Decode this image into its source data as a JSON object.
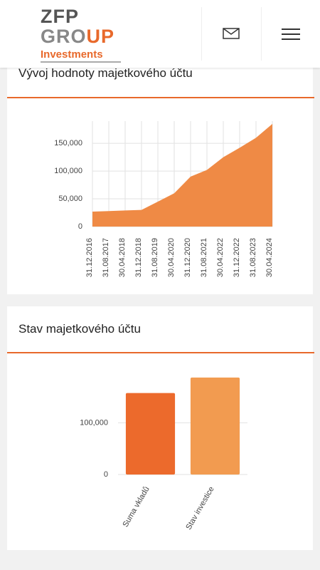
{
  "header": {
    "logo": {
      "line1": "ZFP",
      "line2a": "GRO",
      "line2b": "UP",
      "tagline": "Investments"
    }
  },
  "chart_data": [
    {
      "type": "area",
      "title": "Vývoj hodnoty majetkového účtu",
      "color": "#ef8a45",
      "categories": [
        "31.12.2016",
        "31.08.2017",
        "30.04.2018",
        "31.12.2018",
        "31.08.2019",
        "30.04.2020",
        "31.12.2020",
        "31.08.2021",
        "30.04.2022",
        "31.12.2022",
        "31.08.2023",
        "30.04.2024"
      ],
      "values": [
        27000,
        28000,
        29000,
        30000,
        45000,
        60000,
        90000,
        102000,
        125000,
        142000,
        160000,
        185000
      ],
      "ylim": [
        0,
        190000
      ],
      "yticks": [
        0,
        {
          "value": 50000,
          "label": "50,000"
        },
        {
          "value": 100000,
          "label": "100,000"
        },
        {
          "value": 150000,
          "label": "150,000"
        }
      ],
      "grid": true
    },
    {
      "type": "bar",
      "title": "Stav majetkového účtu",
      "categories": [
        "Suma vkladů",
        "Stav investice"
      ],
      "values": [
        157500,
        187500
      ],
      "colors": [
        "#ec6a2c",
        "#f29b50"
      ],
      "ylim": [
        0,
        190000
      ],
      "yticks": [
        0,
        {
          "value": 100000,
          "label": "100,000"
        }
      ],
      "grid": true
    }
  ]
}
